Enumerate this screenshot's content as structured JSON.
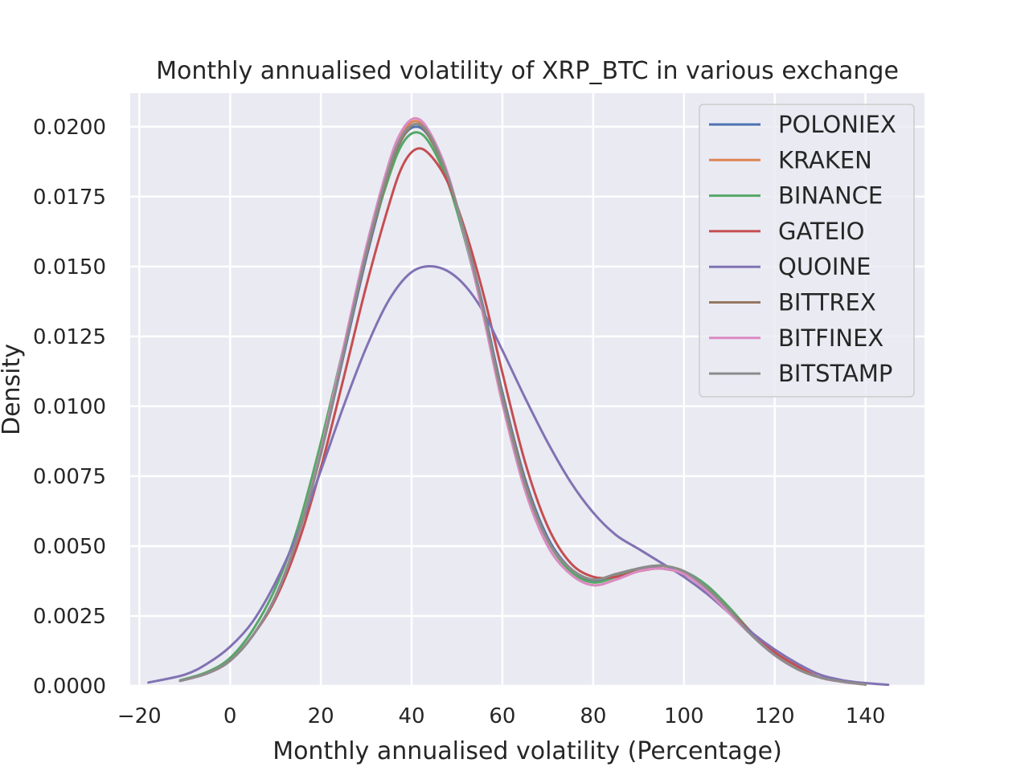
{
  "chart_data": {
    "type": "line",
    "title": "Monthly annualised volatility of XRP_BTC in various exchange",
    "xlabel": "Monthly annualised volatility (Percentage)",
    "ylabel": "Density",
    "xlim": [
      -22,
      153
    ],
    "ylim": [
      0,
      0.0212
    ],
    "xticks": [
      -20,
      0,
      20,
      40,
      60,
      80,
      100,
      120,
      140
    ],
    "xtick_labels": [
      "−20",
      "0",
      "20",
      "40",
      "60",
      "80",
      "100",
      "120",
      "140"
    ],
    "yticks": [
      0,
      0.0025,
      0.005,
      0.0075,
      0.01,
      0.0125,
      0.015,
      0.0175,
      0.02
    ],
    "ytick_labels": [
      "0.0000",
      "0.0025",
      "0.0050",
      "0.0075",
      "0.0100",
      "0.0125",
      "0.0150",
      "0.0175",
      "0.0200"
    ],
    "grid": true,
    "legend_position": "top-right",
    "background": "#eaeaf2",
    "series": [
      {
        "name": "POLONIEX",
        "color": "#4c72b0",
        "points": [
          [
            -11,
            0.00018
          ],
          [
            -5,
            0.00045
          ],
          [
            0,
            0.0009
          ],
          [
            5,
            0.0018
          ],
          [
            10,
            0.0032
          ],
          [
            15,
            0.0054
          ],
          [
            20,
            0.0083
          ],
          [
            25,
            0.0118
          ],
          [
            30,
            0.0153
          ],
          [
            35,
            0.0183
          ],
          [
            38,
            0.0196
          ],
          [
            41,
            0.02
          ],
          [
            44,
            0.0196
          ],
          [
            48,
            0.0182
          ],
          [
            52,
            0.016
          ],
          [
            56,
            0.0134
          ],
          [
            60,
            0.0105
          ],
          [
            65,
            0.0074
          ],
          [
            70,
            0.0053
          ],
          [
            75,
            0.0042
          ],
          [
            80,
            0.00375
          ],
          [
            85,
            0.0039
          ],
          [
            90,
            0.0042
          ],
          [
            95,
            0.0042
          ],
          [
            100,
            0.004
          ],
          [
            105,
            0.0034
          ],
          [
            110,
            0.0026
          ],
          [
            115,
            0.0018
          ],
          [
            120,
            0.0011
          ],
          [
            125,
            0.0006
          ],
          [
            130,
            0.0003
          ],
          [
            135,
            0.00015
          ],
          [
            140,
            5e-05
          ]
        ]
      },
      {
        "name": "KRAKEN",
        "color": "#dd8452",
        "points": [
          [
            -11,
            0.00018
          ],
          [
            -5,
            0.00045
          ],
          [
            0,
            0.0009
          ],
          [
            5,
            0.0018
          ],
          [
            10,
            0.0032
          ],
          [
            15,
            0.0054
          ],
          [
            20,
            0.0084
          ],
          [
            25,
            0.012
          ],
          [
            30,
            0.0156
          ],
          [
            35,
            0.0186
          ],
          [
            38,
            0.0198
          ],
          [
            41,
            0.0202
          ],
          [
            44,
            0.0197
          ],
          [
            48,
            0.0182
          ],
          [
            52,
            0.0159
          ],
          [
            56,
            0.0131
          ],
          [
            60,
            0.0101
          ],
          [
            65,
            0.007
          ],
          [
            70,
            0.005
          ],
          [
            75,
            0.004
          ],
          [
            80,
            0.0036
          ],
          [
            85,
            0.0038
          ],
          [
            90,
            0.0041
          ],
          [
            95,
            0.0042
          ],
          [
            100,
            0.004
          ],
          [
            105,
            0.0034
          ],
          [
            110,
            0.0026
          ],
          [
            115,
            0.0018
          ],
          [
            120,
            0.0011
          ],
          [
            125,
            0.0006
          ],
          [
            130,
            0.0003
          ],
          [
            135,
            0.00014
          ],
          [
            140,
            5e-05
          ]
        ]
      },
      {
        "name": "BINANCE",
        "color": "#55a868",
        "points": [
          [
            -11,
            0.0002
          ],
          [
            -5,
            0.0005
          ],
          [
            0,
            0.001
          ],
          [
            5,
            0.002
          ],
          [
            10,
            0.0035
          ],
          [
            15,
            0.0057
          ],
          [
            20,
            0.0087
          ],
          [
            25,
            0.0121
          ],
          [
            30,
            0.0155
          ],
          [
            35,
            0.0182
          ],
          [
            38,
            0.0194
          ],
          [
            41,
            0.0198
          ],
          [
            44,
            0.0194
          ],
          [
            48,
            0.018
          ],
          [
            52,
            0.0158
          ],
          [
            56,
            0.0132
          ],
          [
            60,
            0.0104
          ],
          [
            65,
            0.0073
          ],
          [
            70,
            0.0052
          ],
          [
            75,
            0.0041
          ],
          [
            80,
            0.0037
          ],
          [
            85,
            0.0039
          ],
          [
            90,
            0.0042
          ],
          [
            95,
            0.0043
          ],
          [
            100,
            0.0041
          ],
          [
            105,
            0.0036
          ],
          [
            110,
            0.0028
          ],
          [
            115,
            0.0019
          ],
          [
            120,
            0.0012
          ],
          [
            125,
            0.0007
          ],
          [
            130,
            0.0003
          ],
          [
            135,
            0.00015
          ],
          [
            140,
            5e-05
          ]
        ]
      },
      {
        "name": "GATEIO",
        "color": "#c44e52",
        "points": [
          [
            -11,
            0.00018
          ],
          [
            -5,
            0.00045
          ],
          [
            0,
            0.0009
          ],
          [
            5,
            0.0018
          ],
          [
            10,
            0.0031
          ],
          [
            15,
            0.0051
          ],
          [
            20,
            0.0078
          ],
          [
            25,
            0.011
          ],
          [
            30,
            0.0143
          ],
          [
            35,
            0.0172
          ],
          [
            38,
            0.0186
          ],
          [
            41,
            0.0192
          ],
          [
            44,
            0.019
          ],
          [
            48,
            0.018
          ],
          [
            52,
            0.0162
          ],
          [
            56,
            0.0139
          ],
          [
            60,
            0.0112
          ],
          [
            65,
            0.008
          ],
          [
            70,
            0.0057
          ],
          [
            75,
            0.0044
          ],
          [
            80,
            0.0039
          ],
          [
            85,
            0.0039
          ],
          [
            90,
            0.0041
          ],
          [
            95,
            0.0042
          ],
          [
            100,
            0.004
          ],
          [
            105,
            0.0035
          ],
          [
            110,
            0.0027
          ],
          [
            115,
            0.0019
          ],
          [
            120,
            0.0012
          ],
          [
            125,
            0.0007
          ],
          [
            130,
            0.0003
          ],
          [
            135,
            0.00015
          ],
          [
            140,
            5e-05
          ]
        ]
      },
      {
        "name": "QUOINE",
        "color": "#8172b3",
        "points": [
          [
            -18,
            0.00012
          ],
          [
            -10,
            0.0004
          ],
          [
            -5,
            0.0008
          ],
          [
            0,
            0.0014
          ],
          [
            5,
            0.0023
          ],
          [
            10,
            0.0037
          ],
          [
            15,
            0.0055
          ],
          [
            20,
            0.0077
          ],
          [
            25,
            0.01
          ],
          [
            30,
            0.0121
          ],
          [
            35,
            0.0138
          ],
          [
            40,
            0.0148
          ],
          [
            45,
            0.015
          ],
          [
            50,
            0.0146
          ],
          [
            55,
            0.0136
          ],
          [
            60,
            0.012
          ],
          [
            65,
            0.0103
          ],
          [
            70,
            0.0087
          ],
          [
            75,
            0.0073
          ],
          [
            80,
            0.0062
          ],
          [
            85,
            0.0054
          ],
          [
            90,
            0.0049
          ],
          [
            95,
            0.0044
          ],
          [
            100,
            0.0039
          ],
          [
            105,
            0.0033
          ],
          [
            110,
            0.0026
          ],
          [
            115,
            0.0019
          ],
          [
            120,
            0.0013
          ],
          [
            125,
            0.0008
          ],
          [
            130,
            0.0004
          ],
          [
            135,
            0.0002
          ],
          [
            140,
            0.0001
          ],
          [
            145,
            4e-05
          ]
        ]
      },
      {
        "name": "BITTREX",
        "color": "#937860",
        "points": [
          [
            -11,
            0.00018
          ],
          [
            -5,
            0.00045
          ],
          [
            0,
            0.0009
          ],
          [
            5,
            0.0018
          ],
          [
            10,
            0.0032
          ],
          [
            15,
            0.0054
          ],
          [
            20,
            0.0083
          ],
          [
            25,
            0.0119
          ],
          [
            30,
            0.0154
          ],
          [
            35,
            0.0184
          ],
          [
            38,
            0.0196
          ],
          [
            41,
            0.0201
          ],
          [
            44,
            0.0196
          ],
          [
            48,
            0.0182
          ],
          [
            52,
            0.016
          ],
          [
            56,
            0.0133
          ],
          [
            60,
            0.0104
          ],
          [
            65,
            0.0073
          ],
          [
            70,
            0.0052
          ],
          [
            75,
            0.0042
          ],
          [
            80,
            0.0038
          ],
          [
            85,
            0.004
          ],
          [
            90,
            0.0042
          ],
          [
            95,
            0.0043
          ],
          [
            100,
            0.0041
          ],
          [
            105,
            0.0035
          ],
          [
            110,
            0.0027
          ],
          [
            115,
            0.0018
          ],
          [
            120,
            0.0011
          ],
          [
            125,
            0.0006
          ],
          [
            130,
            0.0003
          ],
          [
            135,
            0.00015
          ],
          [
            140,
            5e-05
          ]
        ]
      },
      {
        "name": "BITFINEX",
        "color": "#da8bc3",
        "points": [
          [
            -11,
            0.00018
          ],
          [
            -5,
            0.00045
          ],
          [
            0,
            0.0009
          ],
          [
            5,
            0.0018
          ],
          [
            10,
            0.0032
          ],
          [
            15,
            0.0054
          ],
          [
            20,
            0.0084
          ],
          [
            25,
            0.0121
          ],
          [
            30,
            0.0157
          ],
          [
            35,
            0.0187
          ],
          [
            38,
            0.0199
          ],
          [
            41,
            0.0203
          ],
          [
            44,
            0.0198
          ],
          [
            48,
            0.0183
          ],
          [
            52,
            0.0159
          ],
          [
            56,
            0.0131
          ],
          [
            60,
            0.0101
          ],
          [
            65,
            0.007
          ],
          [
            70,
            0.005
          ],
          [
            75,
            0.004
          ],
          [
            80,
            0.0036
          ],
          [
            85,
            0.0038
          ],
          [
            90,
            0.0041
          ],
          [
            95,
            0.0042
          ],
          [
            100,
            0.004
          ],
          [
            105,
            0.0034
          ],
          [
            110,
            0.0026
          ],
          [
            115,
            0.0018
          ],
          [
            120,
            0.0011
          ],
          [
            125,
            0.0006
          ],
          [
            130,
            0.0003
          ],
          [
            135,
            0.00014
          ],
          [
            140,
            5e-05
          ]
        ]
      },
      {
        "name": "BITSTAMP",
        "color": "#8c8c8c",
        "points": [
          [
            -11,
            0.00018
          ],
          [
            -5,
            0.00045
          ],
          [
            0,
            0.0009
          ],
          [
            5,
            0.0018
          ],
          [
            10,
            0.0032
          ],
          [
            15,
            0.0054
          ],
          [
            20,
            0.0083
          ],
          [
            25,
            0.0119
          ],
          [
            30,
            0.0155
          ],
          [
            35,
            0.0185
          ],
          [
            38,
            0.0197
          ],
          [
            41,
            0.0201
          ],
          [
            44,
            0.0197
          ],
          [
            48,
            0.0182
          ],
          [
            52,
            0.016
          ],
          [
            56,
            0.0133
          ],
          [
            60,
            0.0103
          ],
          [
            65,
            0.0072
          ],
          [
            70,
            0.0052
          ],
          [
            75,
            0.0042
          ],
          [
            80,
            0.0038
          ],
          [
            85,
            0.004
          ],
          [
            90,
            0.0042
          ],
          [
            95,
            0.0043
          ],
          [
            100,
            0.0041
          ],
          [
            105,
            0.0035
          ],
          [
            110,
            0.0027
          ],
          [
            115,
            0.0018
          ],
          [
            120,
            0.0011
          ],
          [
            125,
            0.0006
          ],
          [
            130,
            0.0003
          ],
          [
            135,
            0.00015
          ],
          [
            140,
            5e-05
          ]
        ]
      }
    ]
  }
}
